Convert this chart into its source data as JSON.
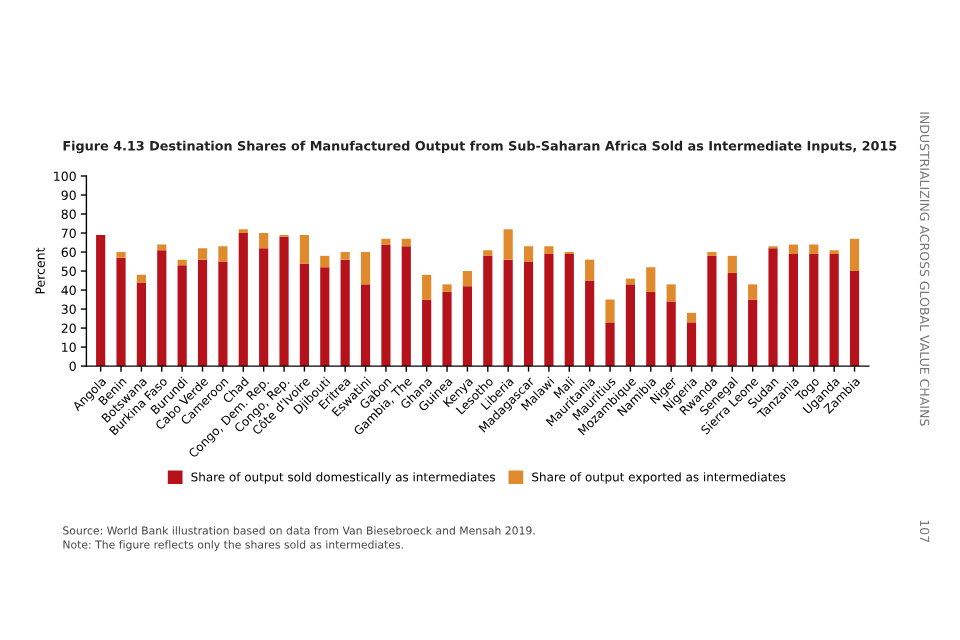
{
  "chart_data": {
    "type": "bar",
    "stacked": true,
    "title": "Figure 4.13 Destination Shares of Manufactured Output from Sub-Saharan Africa Sold as Intermediate Inputs, 2015",
    "ylabel": "Percent",
    "categories": [
      "Angola",
      "Benin",
      "Botswana",
      "Burkina Faso",
      "Burundi",
      "Cabo Verde",
      "Cameroon",
      "Chad",
      "Congo, Dem. Rep.",
      "Congo, Rep.",
      "Côte d'Ivoire",
      "Djibouti",
      "Eritrea",
      "Eswatini",
      "Gabon",
      "Gambia, The",
      "Ghana",
      "Guinea",
      "Kenya",
      "Lesotho",
      "Liberia",
      "Madagascar",
      "Malawi",
      "Mali",
      "Mauritania",
      "Mauritius",
      "Mozambique",
      "Namibia",
      "Niger",
      "Nigeria",
      "Rwanda",
      "Senegal",
      "Sierra Leone",
      "Sudan",
      "Tanzania",
      "Togo",
      "Uganda",
      "Zambia"
    ],
    "series": [
      {
        "name": "Share of output sold domestically as intermediates",
        "color": "#b5121b",
        "values": [
          69,
          57,
          44,
          61,
          53,
          56,
          55,
          70,
          62,
          68,
          54,
          52,
          56,
          43,
          64,
          63,
          35,
          39,
          42,
          58,
          56,
          55,
          59,
          59,
          45,
          23,
          43,
          39,
          34,
          23,
          58,
          49,
          35,
          62,
          59,
          59,
          59,
          50
        ]
      },
      {
        "name": "Share of output exported as intermediates",
        "color": "#e08a2e",
        "values": [
          0,
          3,
          4,
          3,
          3,
          6,
          8,
          2,
          8,
          1,
          15,
          6,
          4,
          17,
          3,
          4,
          13,
          4,
          8,
          3,
          16,
          8,
          4,
          1,
          11,
          12,
          3,
          13,
          9,
          5,
          2,
          9,
          8,
          1,
          5,
          5,
          2,
          17
        ]
      }
    ],
    "ylim": [
      0,
      100
    ],
    "yticks": [
      0,
      10,
      20,
      30,
      40,
      50,
      60,
      70,
      80,
      90,
      100
    ],
    "grid": false,
    "legend": "bottom",
    "annotations": [
      "Source: World Bank illustration based on data from Van Biesebroeck and Mensah 2019.",
      "Note: The figure reflects only the shares sold as intermediates.",
      "INDUSTRIALIZING ACROSS GLOBAL VALUE CHAINS",
      "107"
    ]
  }
}
